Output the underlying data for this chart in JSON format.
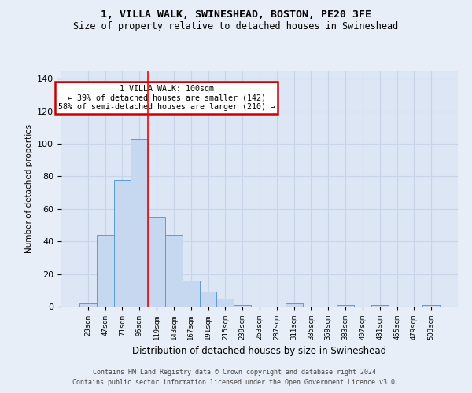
{
  "title_line1": "1, VILLA WALK, SWINESHEAD, BOSTON, PE20 3FE",
  "title_line2": "Size of property relative to detached houses in Swineshead",
  "xlabel": "Distribution of detached houses by size in Swineshead",
  "ylabel": "Number of detached properties",
  "footer_line1": "Contains HM Land Registry data © Crown copyright and database right 2024.",
  "footer_line2": "Contains public sector information licensed under the Open Government Licence v3.0.",
  "categories": [
    "23sqm",
    "47sqm",
    "71sqm",
    "95sqm",
    "119sqm",
    "143sqm",
    "167sqm",
    "191sqm",
    "215sqm",
    "239sqm",
    "263sqm",
    "287sqm",
    "311sqm",
    "335sqm",
    "359sqm",
    "383sqm",
    "407sqm",
    "431sqm",
    "455sqm",
    "479sqm",
    "503sqm"
  ],
  "values": [
    2,
    44,
    78,
    103,
    55,
    44,
    16,
    9,
    5,
    1,
    0,
    0,
    2,
    0,
    0,
    1,
    0,
    1,
    0,
    0,
    1
  ],
  "bar_color": "#c5d8ef",
  "bar_edge_color": "#5b9bd5",
  "grid_color": "#c8d4e8",
  "bg_color": "#e8eef7",
  "plot_bg_color": "#dce6f5",
  "annotation_text": "  1 VILLA WALK: 100sqm  \n← 39% of detached houses are smaller (142)\n58% of semi-detached houses are larger (210) →",
  "annotation_box_color": "#ffffff",
  "annotation_box_edge": "#cc0000",
  "red_line_x": 3.5,
  "ylim": [
    0,
    145
  ],
  "yticks": [
    0,
    20,
    40,
    60,
    80,
    100,
    120,
    140
  ]
}
